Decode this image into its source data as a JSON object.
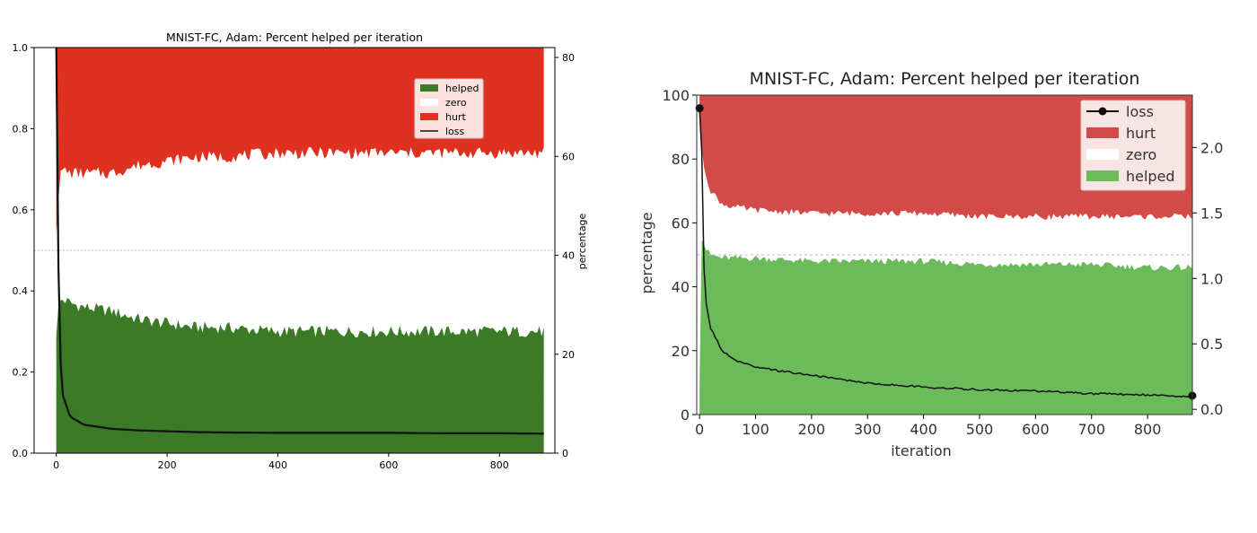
{
  "chart_data": [
    {
      "type": "area",
      "title": "MNIST-FC, Adam: Percent helped per iteration",
      "xlabel": "",
      "ylabel_left": "",
      "ylabel_right": "percentage",
      "xlim": [
        -40,
        900
      ],
      "ylim_left": [
        0,
        1.0
      ],
      "ylim_right": [
        0,
        82
      ],
      "x_ticks": [
        0,
        200,
        400,
        600,
        800
      ],
      "x_tick_labels": [
        "0",
        "200",
        "400",
        "600",
        "800"
      ],
      "y_left_ticks": [
        0.0,
        0.2,
        0.4,
        0.6,
        0.8,
        1.0
      ],
      "y_left_tick_labels": [
        "0.0",
        "0.2",
        "0.4",
        "0.6",
        "0.8",
        "1.0"
      ],
      "y_right_ticks": [
        0,
        20,
        40,
        60,
        80
      ],
      "y_right_tick_labels": [
        "0",
        "20",
        "40",
        "60",
        "80"
      ],
      "reference_line": 0.5,
      "legend_position": "top-right",
      "legend": [
        {
          "label": "helped",
          "color": "#3b7a26"
        },
        {
          "label": "zero",
          "color": "#ffffff"
        },
        {
          "label": "hurt",
          "color": "#e03020"
        },
        {
          "label": "loss",
          "color": "#000000"
        }
      ],
      "x": [
        0,
        5,
        10,
        25,
        50,
        100,
        150,
        200,
        250,
        300,
        400,
        500,
        600,
        700,
        800,
        880
      ],
      "series": [
        {
          "name": "helped",
          "values": [
            0.3,
            0.37,
            0.38,
            0.37,
            0.36,
            0.35,
            0.33,
            0.32,
            0.31,
            0.31,
            0.3,
            0.3,
            0.3,
            0.3,
            0.3,
            0.3
          ]
        },
        {
          "name": "hurt_lower_boundary",
          "values": [
            0.55,
            0.66,
            0.7,
            0.69,
            0.69,
            0.69,
            0.71,
            0.72,
            0.73,
            0.73,
            0.74,
            0.74,
            0.74,
            0.74,
            0.74,
            0.74
          ]
        },
        {
          "name": "loss",
          "values": [
            1.0,
            0.32,
            0.15,
            0.09,
            0.07,
            0.06,
            0.056,
            0.054,
            0.052,
            0.051,
            0.05,
            0.05,
            0.05,
            0.049,
            0.049,
            0.048
          ]
        }
      ]
    },
    {
      "type": "area",
      "title": "MNIST-FC, Adam: Percent helped per iteration",
      "xlabel": "iteration",
      "ylabel_left": "percentage",
      "ylabel_right": "",
      "xlim": [
        -5,
        880
      ],
      "ylim_left": [
        0,
        100
      ],
      "ylim_right": [
        -0.04,
        2.4
      ],
      "x_ticks": [
        0,
        100,
        200,
        300,
        400,
        500,
        600,
        700,
        800
      ],
      "x_tick_labels": [
        "0",
        "100",
        "200",
        "300",
        "400",
        "500",
        "600",
        "700",
        "800"
      ],
      "y_left_ticks": [
        0,
        20,
        40,
        60,
        80,
        100
      ],
      "y_left_tick_labels": [
        "0",
        "20",
        "40",
        "60",
        "80",
        "100"
      ],
      "y_right_ticks": [
        0.0,
        0.5,
        1.0,
        1.5,
        2.0
      ],
      "y_right_tick_labels": [
        "0.0",
        "0.5",
        "1.0",
        "1.5",
        "2.0"
      ],
      "reference_line": 50,
      "legend_position": "top-right",
      "legend": [
        {
          "label": "loss",
          "color": "#000000"
        },
        {
          "label": "hurt",
          "color": "#d24b48"
        },
        {
          "label": "zero",
          "color": "#ffffff"
        },
        {
          "label": "helped",
          "color": "#6cbb5b"
        }
      ],
      "x": [
        0,
        3,
        6,
        10,
        20,
        40,
        60,
        100,
        200,
        300,
        400,
        500,
        600,
        700,
        800,
        880
      ],
      "series": [
        {
          "name": "helped",
          "values": [
            10,
            56,
            55,
            52,
            50,
            49,
            49,
            49,
            48,
            48,
            48,
            47,
            47,
            47,
            46,
            46
          ]
        },
        {
          "name": "hurt_lower_boundary",
          "values": [
            95,
            84,
            80,
            76,
            70,
            66,
            65,
            64,
            63,
            63,
            63,
            62,
            62,
            62,
            62,
            62
          ]
        },
        {
          "name": "loss",
          "values": [
            2.3,
            2.3,
            1.3,
            0.85,
            0.62,
            0.45,
            0.38,
            0.32,
            0.26,
            0.2,
            0.17,
            0.15,
            0.14,
            0.12,
            0.11,
            0.1
          ]
        }
      ]
    }
  ]
}
